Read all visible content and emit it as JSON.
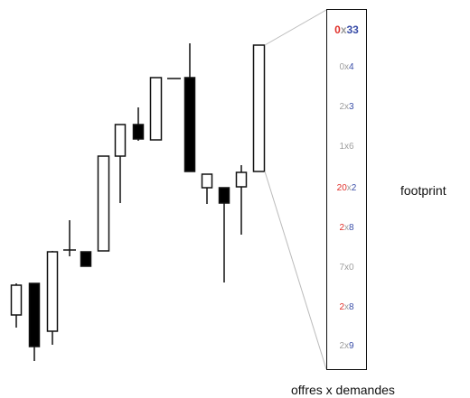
{
  "labels": {
    "footprint": "footprint",
    "offers_x_demands": "offres x demandes"
  },
  "colors": {
    "red": "#e0302a",
    "blue": "#3a4ea8",
    "gray": "#a0a0a0",
    "ink": "#111111"
  },
  "footprint_rows": [
    {
      "bid": "0",
      "sep": "x",
      "ask": "33",
      "bid_color": "red",
      "ask_color": "blue",
      "bold": true
    },
    {
      "bid": "0",
      "sep": "x",
      "ask": "4",
      "bid_color": "gray",
      "ask_color": "blue",
      "bold": false
    },
    {
      "bid": "2",
      "sep": "x",
      "ask": "3",
      "bid_color": "gray",
      "ask_color": "blue",
      "bold": false
    },
    {
      "bid": "1",
      "sep": "x",
      "ask": "6",
      "bid_color": "gray",
      "ask_color": "gray",
      "bold": false
    },
    {
      "bid": "20",
      "sep": "x",
      "ask": "2",
      "bid_color": "red",
      "ask_color": "blue",
      "bold": false
    },
    {
      "bid": "2",
      "sep": "x",
      "ask": "8",
      "bid_color": "red",
      "ask_color": "blue",
      "bold": false
    },
    {
      "bid": "7",
      "sep": "x",
      "ask": "0",
      "bid_color": "gray",
      "ask_color": "gray",
      "bold": false
    },
    {
      "bid": "2",
      "sep": "x",
      "ask": "8",
      "bid_color": "red",
      "ask_color": "blue",
      "bold": false
    },
    {
      "bid": "2",
      "sep": "x",
      "ask": "9",
      "bid_color": "gray",
      "ask_color": "blue",
      "bold": false
    }
  ]
}
